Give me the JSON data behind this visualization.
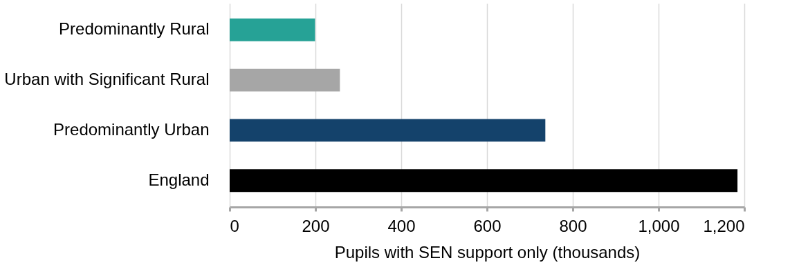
{
  "chart_data": {
    "type": "bar",
    "orientation": "horizontal",
    "xlabel": "Pupils with SEN support only (thousands)",
    "categories": [
      "Predominantly Rural",
      "Urban with Significant Rural",
      "Predominantly Urban",
      "England"
    ],
    "values": [
      199,
      257,
      736,
      1184
    ],
    "colors": [
      "#26a296",
      "#a6a6a6",
      "#14426b",
      "#000000"
    ],
    "xlim": [
      0,
      1200
    ],
    "xticks": [
      0,
      200,
      400,
      600,
      800,
      {
        "value": 1000,
        "label": "1,000"
      },
      {
        "value": 1200,
        "label": "1,200"
      }
    ],
    "grid": "x"
  }
}
